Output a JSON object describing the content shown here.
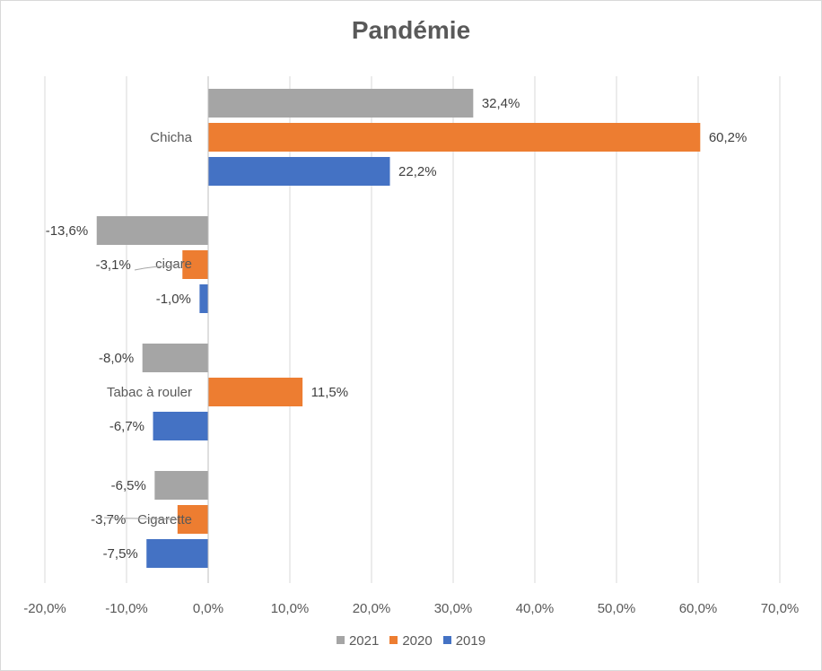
{
  "chart_data": {
    "type": "bar",
    "orientation": "horizontal",
    "title": "Pandémie",
    "categories": [
      "Chicha",
      "cigare",
      "Tabac à rouler",
      "Cigarette"
    ],
    "series": [
      {
        "name": "2021",
        "color": "#a5a5a5",
        "values": [
          32.4,
          -13.6,
          -8.0,
          -6.5
        ],
        "labels": [
          "32,4%",
          "-13,6%",
          "-8,0%",
          "-6,5%"
        ]
      },
      {
        "name": "2020",
        "color": "#ed7d31",
        "values": [
          60.2,
          -3.1,
          11.5,
          -3.7
        ],
        "labels": [
          "60,2%",
          "-3,1%",
          "11,5%",
          "-3,7%"
        ]
      },
      {
        "name": "2019",
        "color": "#4472c4",
        "values": [
          22.2,
          -1.0,
          -6.7,
          -7.5
        ],
        "labels": [
          "22,2%",
          "-1,0%",
          "-6,7%",
          "-7,5%"
        ]
      }
    ],
    "xlim": [
      -20,
      70
    ],
    "xticks": [
      -20,
      -10,
      0,
      10,
      20,
      30,
      40,
      50,
      60,
      70
    ],
    "xtick_labels": [
      "-20,0%",
      "-10,0%",
      "0,0%",
      "10,0%",
      "20,0%",
      "30,0%",
      "40,0%",
      "50,0%",
      "60,0%",
      "70,0%"
    ],
    "xlabel": "",
    "ylabel": "",
    "grid": "vertical",
    "legend_position": "bottom",
    "legend_order": [
      "2021",
      "2020",
      "2019"
    ]
  }
}
